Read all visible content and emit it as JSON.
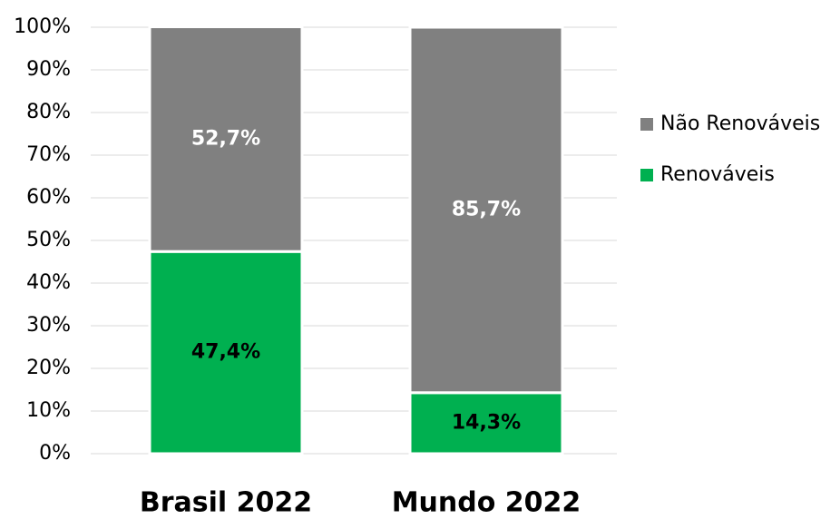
{
  "chart_data": {
    "type": "stacked_bar",
    "categories": [
      "Brasil 2022",
      "Mundo 2022"
    ],
    "series": [
      {
        "name": "Renováveis",
        "color": "#00b050",
        "values": [
          47.4,
          14.3
        ],
        "value_labels": [
          "47,4%",
          "14,3%"
        ],
        "label_color": "#000000"
      },
      {
        "name": "Não Renováveis",
        "color": "#808080",
        "values": [
          52.7,
          85.7
        ],
        "value_labels": [
          "52,7%",
          "85,7%"
        ],
        "label_color": "#ffffff"
      }
    ],
    "ylim": [
      0,
      100
    ],
    "yticks": [
      {
        "value": 0,
        "label": "0%"
      },
      {
        "value": 10,
        "label": "10%"
      },
      {
        "value": 20,
        "label": "20%"
      },
      {
        "value": 30,
        "label": "30%"
      },
      {
        "value": 40,
        "label": "40%"
      },
      {
        "value": 50,
        "label": "50%"
      },
      {
        "value": 60,
        "label": "60%"
      },
      {
        "value": 70,
        "label": "70%"
      },
      {
        "value": 80,
        "label": "80%"
      },
      {
        "value": 90,
        "label": "90%"
      },
      {
        "value": 100,
        "label": "100%"
      }
    ],
    "grid": true,
    "legend": "right"
  }
}
